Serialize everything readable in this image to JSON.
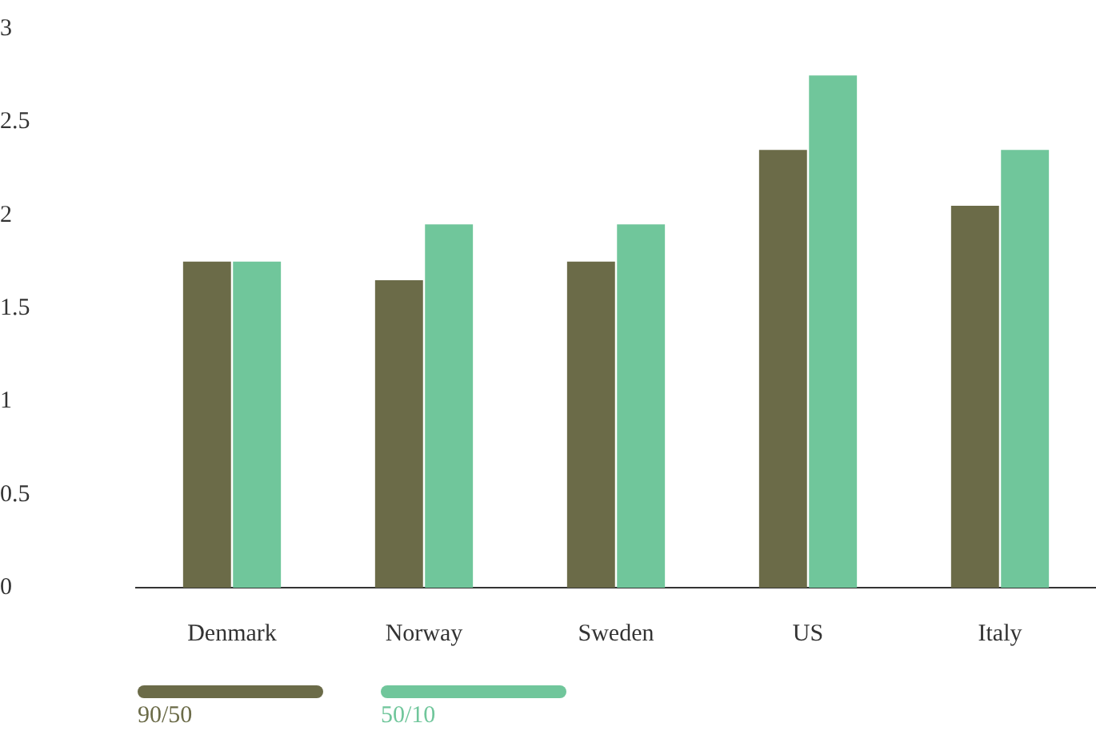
{
  "chart_data": {
    "type": "bar",
    "categories": [
      "Denmark",
      "Norway",
      "Sweden",
      "US",
      "Italy"
    ],
    "series": [
      {
        "name": "90/50",
        "color": "#6b6b48",
        "values": [
          1.75,
          1.65,
          1.75,
          2.35,
          2.05
        ]
      },
      {
        "name": "50/10",
        "color": "#70c69b",
        "values": [
          1.75,
          1.95,
          1.95,
          2.75,
          2.35
        ]
      }
    ],
    "ylim": [
      0,
      3
    ],
    "yticks": [
      0,
      0.5,
      1,
      1.5,
      2,
      2.5,
      3
    ],
    "grid": false,
    "legend": "bottom left"
  }
}
